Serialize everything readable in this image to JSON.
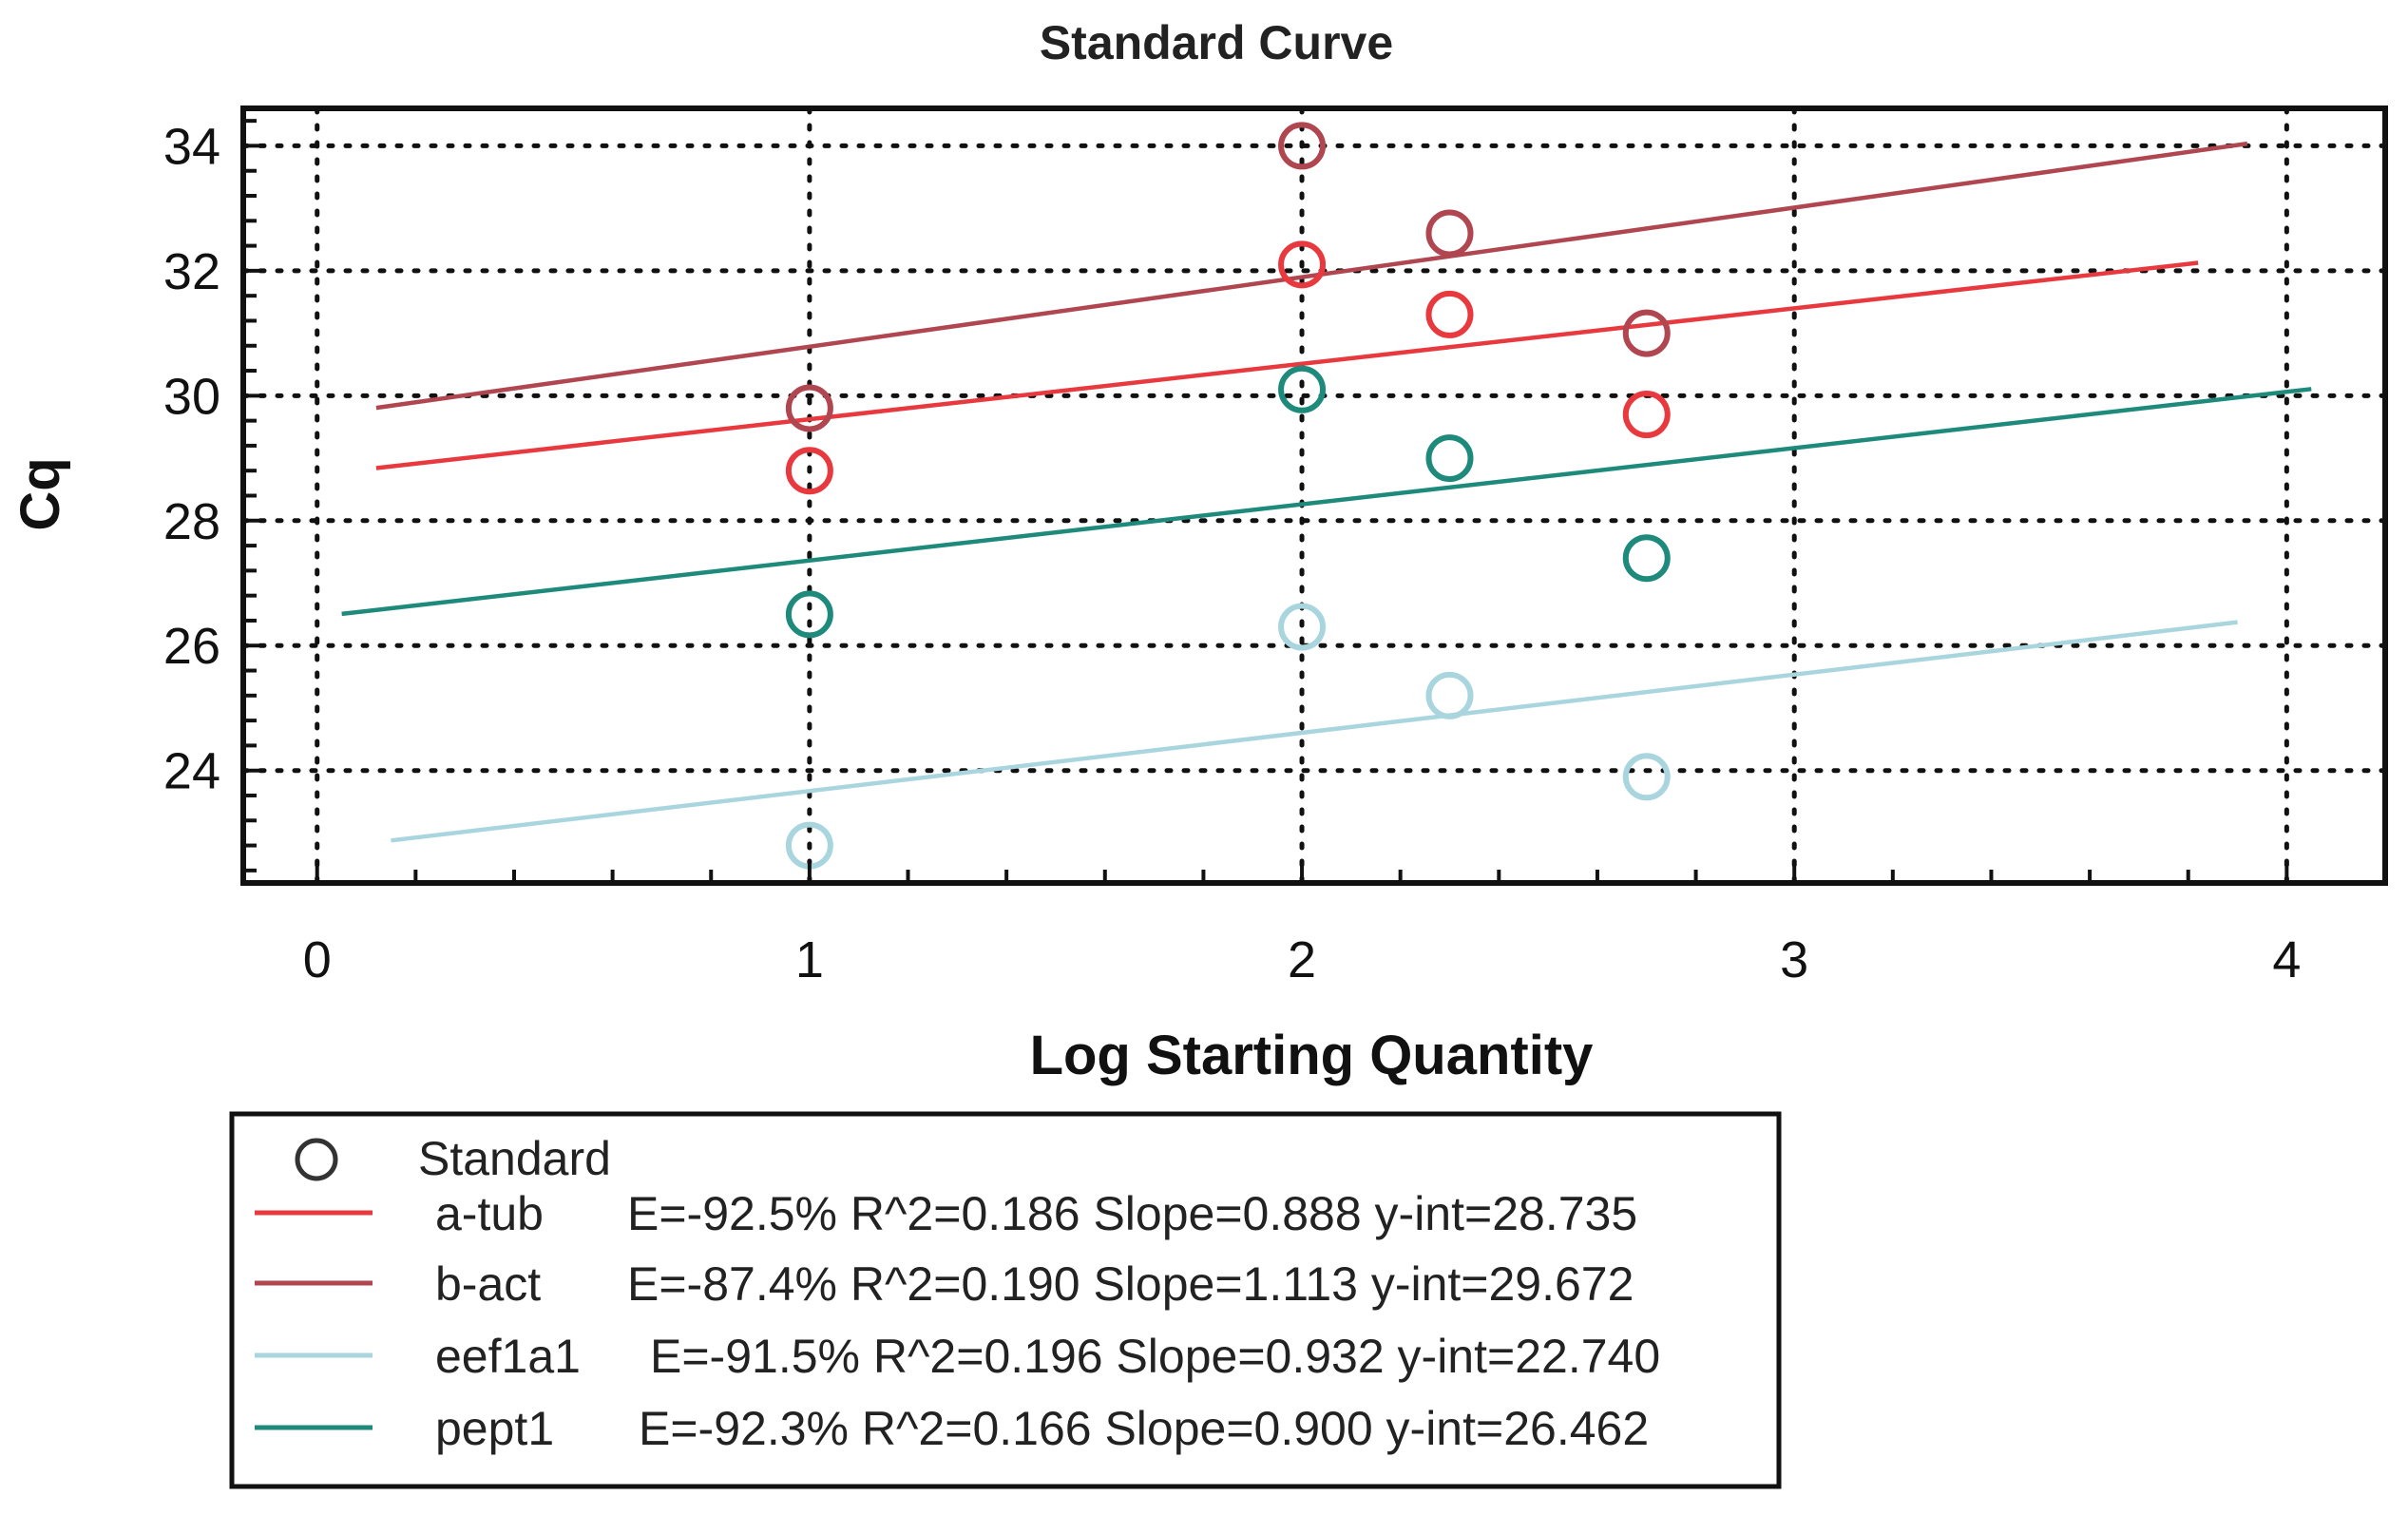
{
  "chart_data": {
    "type": "scatter",
    "title": "Standard Curve",
    "xlabel": "Log Starting Quantity",
    "ylabel": "Cq",
    "xlim": [
      -0.15,
      4.2
    ],
    "ylim": [
      22.2,
      34.6
    ],
    "xticks": [
      0,
      1,
      2,
      3,
      4
    ],
    "yticks": [
      24,
      26,
      28,
      30,
      32,
      34
    ],
    "grid": true,
    "legend_position": "bottom",
    "legend_header": "Standard",
    "series": [
      {
        "name": "a-tub",
        "color": "#e8393f",
        "stats": "E=-92.5% R^2=0.186 Slope=0.888 y-int=28.735",
        "points": [
          [
            1,
            28.8
          ],
          [
            2,
            32.1
          ],
          [
            2.3,
            31.3
          ],
          [
            2.7,
            29.7
          ]
        ],
        "fit": {
          "slope": 0.888,
          "intercept": 28.735,
          "x_start": 0.12,
          "x_end": 3.82
        }
      },
      {
        "name": "b-act",
        "color": "#b04650",
        "stats": "E=-87.4% R^2=0.190 Slope=1.113 y-int=29.672",
        "points": [
          [
            1,
            29.8
          ],
          [
            2,
            34.0
          ],
          [
            2.3,
            32.6
          ],
          [
            2.7,
            31.0
          ]
        ],
        "fit": {
          "slope": 1.113,
          "intercept": 29.672,
          "x_start": 0.12,
          "x_end": 3.92
        }
      },
      {
        "name": "eef1a1",
        "color": "#a9d6de",
        "stats": "E=-91.5% R^2=0.196 Slope=0.932 y-int=22.740",
        "points": [
          [
            1,
            22.8
          ],
          [
            2,
            26.3
          ],
          [
            2.3,
            25.2
          ],
          [
            2.7,
            23.9
          ]
        ],
        "fit": {
          "slope": 0.932,
          "intercept": 22.74,
          "x_start": 0.15,
          "x_end": 3.9
        }
      },
      {
        "name": "pept1",
        "color": "#1e8a7c",
        "stats": "E=-92.3% R^2=0.166 Slope=0.900 y-int=26.462",
        "points": [
          [
            1,
            26.5
          ],
          [
            2,
            30.1
          ],
          [
            2.3,
            29.0
          ],
          [
            2.7,
            27.4
          ]
        ],
        "fit": {
          "slope": 0.9,
          "intercept": 26.462,
          "x_start": 0.05,
          "x_end": 4.05
        }
      }
    ]
  }
}
